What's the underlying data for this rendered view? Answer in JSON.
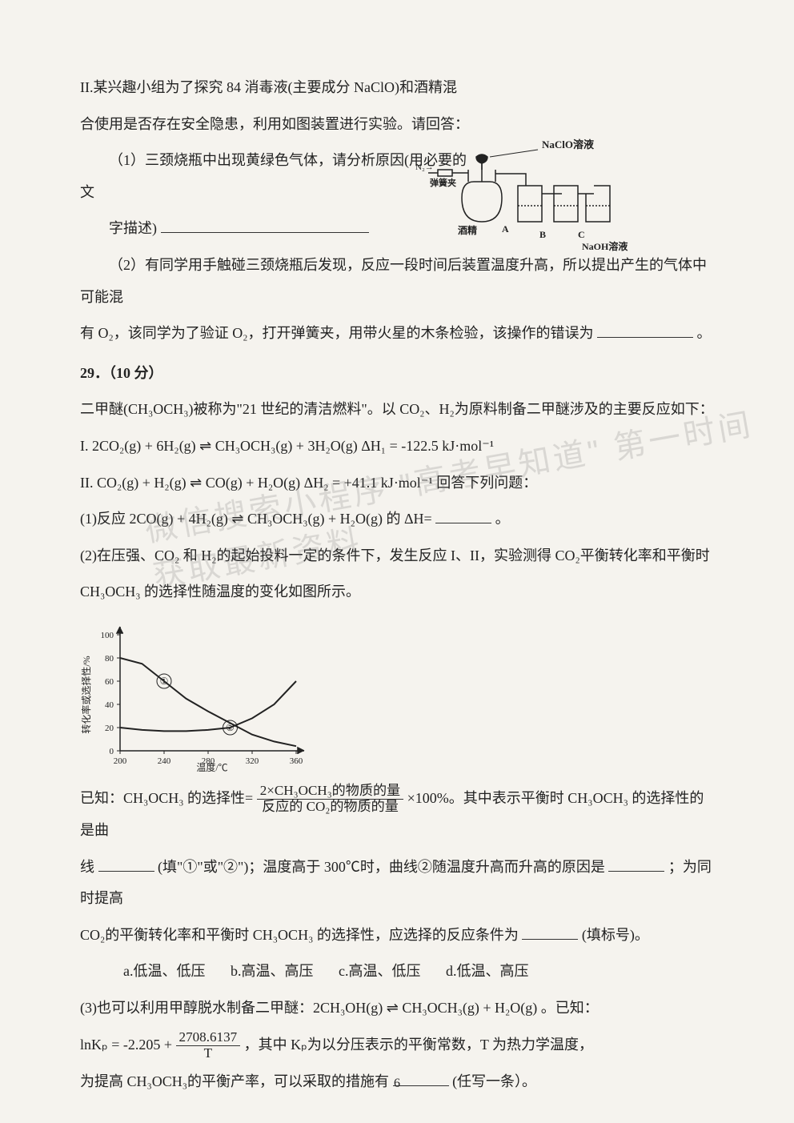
{
  "sectionII": {
    "intro_l1": "II.某兴趣小组为了探究 84 消毒液(主要成分 NaClO)和酒精混",
    "intro_l2": "合使用是否存在安全隐患，利用如图装置进行实验。请回答：",
    "q1_l1": "（1）三颈烧瓶中出现黄绿色气体，请分析原因(用必要的文",
    "q1_l2": "字描述)",
    "q2": "（2）有同学用手触碰三颈烧瓶后发现，反应一段时间后装置温度升高，所以提出产生的气体中可能混",
    "q2b": "有 O₂，该同学为了验证 O₂，打开弹簧夹，用带火星的木条检验，该操作的错误为",
    "period": "。"
  },
  "diagram": {
    "labels": {
      "naclo": "NaClO溶液",
      "n2": "N₂→",
      "clip": "弹簧夹",
      "alcohol": "酒精",
      "A": "A",
      "B": "B",
      "C": "C",
      "naoh": "NaOH溶液"
    }
  },
  "q29": {
    "heading": "29．（10 分）",
    "intro": "二甲醚(CH₃OCH₃)被称为\"21 世纪的清洁燃料\"。以 CO₂、H₂为原料制备二甲醚涉及的主要反应如下：",
    "eq1": "I.  2CO₂(g) + 6H₂(g) ⇌ CH₃OCH₃(g) + 3H₂O(g)   ΔH₁ = -122.5 kJ·mol⁻¹",
    "eq2": "II.  CO₂(g) + H₂(g) ⇌ CO(g) + H₂O(g)   ΔH₂ = +41.1 kJ·mol⁻¹    回答下列问题：",
    "sub1": "(1)反应 2CO(g) + 4H₂(g) ⇌ CH₃OCH₃(g) + H₂O(g) 的 ΔH=",
    "sub2a": "(2)在压强、CO₂ 和 H₂的起始投料一定的条件下，发生反应 I、II，实验测得 CO₂平衡转化率和平衡时",
    "sub2b": "CH₃OCH₃ 的选择性随温度的变化如图所示。"
  },
  "chart": {
    "ylabel": "转化率或选择性/%",
    "xlabel": "温度/℃",
    "ymax": 100,
    "ymin": 0,
    "yticks": [
      0,
      20,
      40,
      60,
      80,
      100
    ],
    "xmin": 200,
    "xmax": 360,
    "xticks": [
      200,
      240,
      280,
      320,
      360
    ],
    "curve1": {
      "label": "①",
      "points": [
        [
          200,
          80
        ],
        [
          220,
          75
        ],
        [
          240,
          60
        ],
        [
          260,
          45
        ],
        [
          280,
          34
        ],
        [
          300,
          24
        ],
        [
          320,
          14
        ],
        [
          340,
          8
        ],
        [
          360,
          4
        ]
      ],
      "color": "#222",
      "width": 2
    },
    "curve2": {
      "label": "②",
      "points": [
        [
          200,
          20
        ],
        [
          220,
          18
        ],
        [
          240,
          17
        ],
        [
          260,
          17
        ],
        [
          280,
          18
        ],
        [
          300,
          20
        ],
        [
          320,
          28
        ],
        [
          340,
          40
        ],
        [
          360,
          60
        ]
      ],
      "color": "#222",
      "width": 2
    },
    "axis_color": "#222",
    "tick_fontsize": 11,
    "label_fontsize": 12
  },
  "below_chart": {
    "known_prefix": "已知：CH₃OCH₃ 的选择性=",
    "frac_num": "2×CH₃OCH₃的物质的量",
    "frac_den": "反应的 CO₂的物质的量",
    "known_suffix": " ×100%。其中表示平衡时 CH₃OCH₃ 的选择性的是曲",
    "line2a": "线",
    "line2b": "(填\"①\"或\"②\")；温度高于 300℃时，曲线②随温度升高而升高的原因是",
    "line2c": "；为同时提高",
    "line3a": "CO₂的平衡转化率和平衡时 CH₃OCH₃ 的选择性，应选择的反应条件为",
    "line3b": "(填标号)。",
    "options": "a.低温、低压    b.高温、高压    c.高温、低压  d.低温、高压",
    "sub3a": "(3)也可以利用甲醇脱水制备二甲醚：2CH₃OH(g) ⇌ CH₃OCH₃(g) + H₂O(g) 。已知：",
    "lnk_prefix": "lnKₚ = -2.205 +",
    "lnk_num": "2708.6137",
    "lnk_den": "T",
    "lnk_suffix": "，其中 Kₚ为以分压表示的平衡常数，T 为热力学温度，",
    "sub3c": "为提高 CH₃OCH₃的平衡产率，可以采取的措施有",
    "sub3d": "(任写一条）。"
  },
  "watermark": "微信搜索小程序 \"高考早知道\" 第一时间获取最新资料",
  "page_number": "6"
}
